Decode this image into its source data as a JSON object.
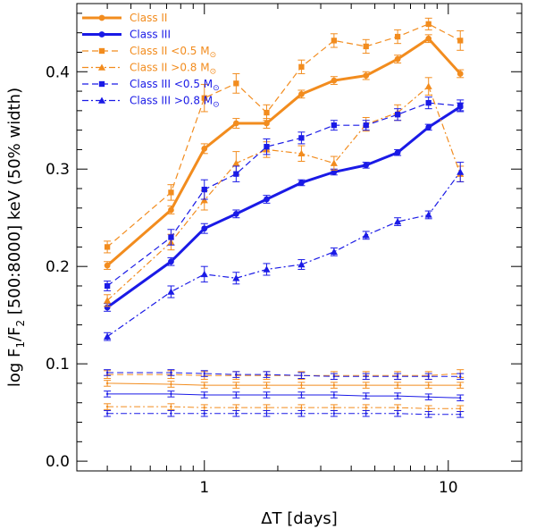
{
  "chart_data": {
    "type": "line",
    "xscale": "log",
    "xlim": [
      0.3,
      20
    ],
    "ylim": [
      -0.01,
      0.47
    ],
    "xlabel": "ΔT [days]",
    "ylabel": "log F1/F2 [500:8000] keV (50% width)",
    "ylabel_parts": {
      "prefix": "log F",
      "sub1": "1",
      "slash": "/F",
      "sub2": "2",
      "rest": " [500:8000] keV (50% width)"
    },
    "xticks": [
      {
        "value": 1,
        "label": "1"
      },
      {
        "value": 10,
        "label": "10"
      }
    ],
    "yticks": [
      {
        "value": 0.0,
        "label": "0.0"
      },
      {
        "value": 0.1,
        "label": "0.1"
      },
      {
        "value": 0.2,
        "label": "0.2"
      },
      {
        "value": 0.3,
        "label": "0.3"
      },
      {
        "value": 0.4,
        "label": "0.4"
      }
    ],
    "x": [
      0.4,
      0.73,
      1.0,
      1.35,
      1.8,
      2.5,
      3.4,
      4.6,
      6.2,
      8.3,
      11.2
    ],
    "legend_position": "top-left",
    "colors": {
      "orange": "#f28c1e",
      "blue": "#1a1ae6"
    },
    "series": [
      {
        "name": "Class II",
        "legend_label": "Class II",
        "legend_sub": "",
        "color": "#f28c1e",
        "dash": "solid",
        "marker": "circle",
        "thick": true,
        "values": [
          0.201,
          0.258,
          0.321,
          0.347,
          0.347,
          0.377,
          0.391,
          0.396,
          0.413,
          0.434,
          0.398
        ],
        "errors": [
          0.004,
          0.004,
          0.005,
          0.005,
          0.005,
          0.004,
          0.004,
          0.004,
          0.004,
          0.004,
          0.004
        ]
      },
      {
        "name": "Class III",
        "legend_label": "Class III",
        "legend_sub": "",
        "color": "#1a1ae6",
        "dash": "solid",
        "marker": "circle",
        "thick": true,
        "values": [
          0.158,
          0.205,
          0.239,
          0.254,
          0.269,
          0.286,
          0.297,
          0.304,
          0.317,
          0.343,
          0.364
        ],
        "errors": [
          0.004,
          0.004,
          0.005,
          0.004,
          0.004,
          0.003,
          0.003,
          0.003,
          0.003,
          0.003,
          0.004
        ]
      },
      {
        "name": "Class II <0.5 M⊙",
        "legend_label": "Class II <0.5 M",
        "legend_sub": "⊙",
        "color": "#f28c1e",
        "dash": "dashed",
        "marker": "square",
        "thick": false,
        "values": [
          0.22,
          0.276,
          0.373,
          0.388,
          0.358,
          0.405,
          0.432,
          0.426,
          0.436,
          0.449,
          0.432
        ],
        "errors": [
          0.006,
          0.008,
          0.014,
          0.01,
          0.008,
          0.007,
          0.007,
          0.007,
          0.007,
          0.006,
          0.01
        ]
      },
      {
        "name": "Class II >0.8 M⊙",
        "legend_label": "Class II >0.8 M",
        "legend_sub": "⊙",
        "color": "#f28c1e",
        "dash": "dashdot",
        "marker": "triangle",
        "thick": false,
        "values": [
          0.165,
          0.225,
          0.268,
          0.306,
          0.32,
          0.316,
          0.306,
          0.346,
          0.358,
          0.385,
          0.295
        ],
        "errors": [
          0.006,
          0.008,
          0.01,
          0.012,
          0.008,
          0.008,
          0.007,
          0.007,
          0.008,
          0.009,
          0.008
        ]
      },
      {
        "name": "Class III <0.5 M⊙",
        "legend_label": "Class III <0.5 M",
        "legend_sub": "⊙",
        "color": "#1a1ae6",
        "dash": "dashed",
        "marker": "square",
        "thick": false,
        "values": [
          0.18,
          0.23,
          0.279,
          0.295,
          0.323,
          0.332,
          0.345,
          0.345,
          0.356,
          0.368,
          0.365
        ],
        "errors": [
          0.005,
          0.008,
          0.01,
          0.008,
          0.008,
          0.006,
          0.005,
          0.005,
          0.006,
          0.006,
          0.006
        ]
      },
      {
        "name": "Class III >0.8 M⊙",
        "legend_label": "Class III >0.8 M",
        "legend_sub": "⊙",
        "color": "#1a1ae6",
        "dash": "dashdot",
        "marker": "triangle",
        "thick": false,
        "values": [
          0.128,
          0.174,
          0.192,
          0.188,
          0.197,
          0.202,
          0.215,
          0.232,
          0.246,
          0.253,
          0.297
        ],
        "errors": [
          0.004,
          0.006,
          0.008,
          0.006,
          0.006,
          0.005,
          0.004,
          0.004,
          0.004,
          0.004,
          0.01
        ]
      }
    ],
    "baselines": [
      {
        "name": "Class II <0.5 M⊙ baseline",
        "color": "#f28c1e",
        "dash": "dashed",
        "values": [
          0.089,
          0.089,
          0.088,
          0.088,
          0.088,
          0.088,
          0.088,
          0.088,
          0.088,
          0.088,
          0.09
        ],
        "error": 0.004
      },
      {
        "name": "Class III <0.5 M⊙ baseline",
        "color": "#1a1ae6",
        "dash": "dashed",
        "values": [
          0.091,
          0.091,
          0.09,
          0.089,
          0.089,
          0.088,
          0.087,
          0.087,
          0.087,
          0.087,
          0.087
        ],
        "error": 0.003
      },
      {
        "name": "Class II baseline",
        "color": "#f28c1e",
        "dash": "solid",
        "values": [
          0.08,
          0.079,
          0.078,
          0.078,
          0.078,
          0.078,
          0.078,
          0.078,
          0.078,
          0.078,
          0.078
        ],
        "error": 0.003
      },
      {
        "name": "Class III baseline",
        "color": "#1a1ae6",
        "dash": "solid",
        "values": [
          0.069,
          0.069,
          0.068,
          0.068,
          0.068,
          0.068,
          0.068,
          0.067,
          0.067,
          0.066,
          0.065
        ],
        "error": 0.003
      },
      {
        "name": "Class II >0.8 M⊙ baseline",
        "color": "#f28c1e",
        "dash": "dashdot",
        "values": [
          0.056,
          0.056,
          0.055,
          0.055,
          0.055,
          0.055,
          0.055,
          0.055,
          0.055,
          0.054,
          0.054
        ],
        "error": 0.003
      },
      {
        "name": "Class III >0.8 M⊙ baseline",
        "color": "#1a1ae6",
        "dash": "dashdot",
        "values": [
          0.049,
          0.049,
          0.049,
          0.049,
          0.049,
          0.049,
          0.049,
          0.049,
          0.049,
          0.048,
          0.048
        ],
        "error": 0.003
      }
    ]
  }
}
